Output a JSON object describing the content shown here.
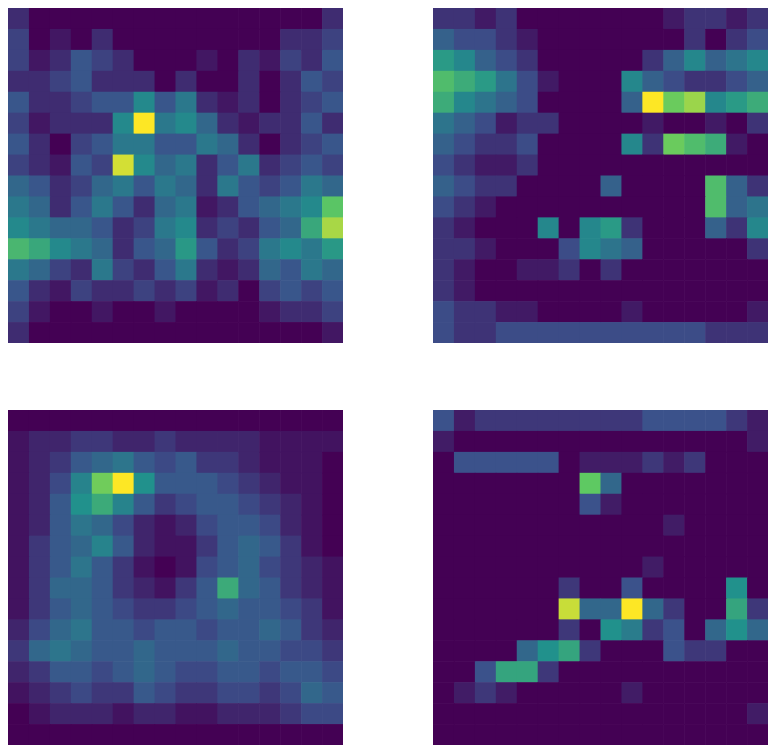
{
  "chart_data": [
    {
      "type": "heatmap",
      "color": "viridis",
      "tick_labels": false,
      "cells": [
        [
          0.1,
          0,
          0,
          0,
          0,
          0,
          0,
          0,
          0,
          0,
          0,
          0,
          0,
          0,
          0,
          0.1
        ],
        [
          0.15,
          0,
          0.05,
          0,
          0.1,
          0,
          0,
          0,
          0,
          0,
          0,
          0,
          0,
          0.1,
          0.1,
          0.15
        ],
        [
          0.15,
          0.05,
          0.1,
          0.2,
          0.15,
          0.1,
          0,
          0,
          0,
          0.05,
          0,
          0.1,
          0.05,
          0.15,
          0.1,
          0.2
        ],
        [
          0.1,
          0.1,
          0.15,
          0.2,
          0.1,
          0.1,
          0.1,
          0,
          0.1,
          0,
          0,
          0.1,
          0,
          0.1,
          0.2,
          0.15
        ],
        [
          0.2,
          0.1,
          0.1,
          0.15,
          0.2,
          0.2,
          0.35,
          0.2,
          0.3,
          0.1,
          0.05,
          0.1,
          0,
          0.1,
          0.15,
          0.2
        ],
        [
          0.15,
          0.05,
          0.1,
          0.1,
          0.1,
          0.35,
          0.75,
          0.3,
          0.35,
          0.25,
          0.1,
          0.05,
          0.1,
          0.1,
          0.2,
          0.1
        ],
        [
          0.2,
          0.1,
          0,
          0.15,
          0.2,
          0.3,
          0.3,
          0.2,
          0.2,
          0.3,
          0.25,
          0.1,
          0,
          0.1,
          0.15,
          0.2
        ],
        [
          0.15,
          0.1,
          0.05,
          0.2,
          0.15,
          0.7,
          0.35,
          0.25,
          0.3,
          0.1,
          0.2,
          0.3,
          0.1,
          0.15,
          0.2,
          0.15
        ],
        [
          0.25,
          0.2,
          0.1,
          0.15,
          0.25,
          0.3,
          0.2,
          0.3,
          0.25,
          0.1,
          0.3,
          0.2,
          0.15,
          0.2,
          0.3,
          0.25
        ],
        [
          0.3,
          0.25,
          0.1,
          0.2,
          0.3,
          0.2,
          0.1,
          0.25,
          0.3,
          0.05,
          0.1,
          0.2,
          0.25,
          0.3,
          0.35,
          0.55
        ],
        [
          0.35,
          0.3,
          0.25,
          0.25,
          0.2,
          0.1,
          0.15,
          0.3,
          0.35,
          0.1,
          0.15,
          0.1,
          0.2,
          0.25,
          0.45,
          0.65
        ],
        [
          0.5,
          0.45,
          0.35,
          0.3,
          0.25,
          0.1,
          0.2,
          0.25,
          0.4,
          0.2,
          0.1,
          0.15,
          0.3,
          0.35,
          0.3,
          0.4
        ],
        [
          0.3,
          0.25,
          0.15,
          0.1,
          0.3,
          0.15,
          0.1,
          0.2,
          0.3,
          0.1,
          0.05,
          0.1,
          0.25,
          0.2,
          0.3,
          0.25
        ],
        [
          0.2,
          0.1,
          0.05,
          0.15,
          0.1,
          0.1,
          0.15,
          0.1,
          0.15,
          0.05,
          0.1,
          0,
          0.15,
          0.2,
          0.15,
          0.2
        ],
        [
          0.15,
          0.05,
          0,
          0,
          0.05,
          0,
          0,
          0.05,
          0,
          0,
          0,
          0,
          0.05,
          0.1,
          0.1,
          0.15
        ],
        [
          0.1,
          0,
          0,
          0,
          0,
          0,
          0,
          0,
          0,
          0,
          0,
          0,
          0,
          0,
          0,
          0.05
        ]
      ]
    },
    {
      "type": "heatmap",
      "color": "viridis",
      "tick_labels": false,
      "cells": [
        [
          0.1,
          0.1,
          0.05,
          0.1,
          0,
          0,
          0,
          0,
          0,
          0,
          0,
          0.05,
          0.1,
          0.1,
          0.05,
          0.1
        ],
        [
          0.2,
          0.15,
          0.15,
          0.1,
          0.05,
          0,
          0,
          0,
          0,
          0,
          0,
          0,
          0.1,
          0,
          0.1,
          0.15
        ],
        [
          0.35,
          0.3,
          0.2,
          0.15,
          0.1,
          0,
          0,
          0,
          0,
          0,
          0.1,
          0.2,
          0.3,
          0.2,
          0.25,
          0.3
        ],
        [
          0.45,
          0.4,
          0.35,
          0.25,
          0.15,
          0.05,
          0,
          0,
          0,
          0.3,
          0.2,
          0.15,
          0.1,
          0.1,
          0.15,
          0.2
        ],
        [
          0.4,
          0.3,
          0.25,
          0.2,
          0.15,
          0,
          0,
          0,
          0,
          0.2,
          0.65,
          0.5,
          0.55,
          0.3,
          0.35,
          0.4
        ],
        [
          0.25,
          0.2,
          0.15,
          0.05,
          0.1,
          0.1,
          0,
          0,
          0,
          0,
          0.05,
          0,
          0,
          0.05,
          0,
          0.1
        ],
        [
          0.2,
          0.15,
          0.1,
          0.1,
          0.15,
          0,
          0,
          0,
          0,
          0.3,
          0.1,
          0.5,
          0.45,
          0.4,
          0.05,
          0
        ],
        [
          0.15,
          0.1,
          0.05,
          0.05,
          0.1,
          0,
          0,
          0,
          0,
          0,
          0,
          0,
          0,
          0,
          0,
          0
        ],
        [
          0.2,
          0.15,
          0.1,
          0.1,
          0,
          0,
          0,
          0,
          0.2,
          0,
          0,
          0,
          0,
          0.45,
          0.2,
          0.1
        ],
        [
          0.15,
          0.1,
          0.05,
          0,
          0,
          0,
          0,
          0,
          0,
          0,
          0,
          0,
          0,
          0.45,
          0.2,
          0.25
        ],
        [
          0.1,
          0.05,
          0,
          0,
          0,
          0.3,
          0,
          0.3,
          0.35,
          0.1,
          0,
          0,
          0,
          0.2,
          0.1,
          0.3
        ],
        [
          0.1,
          0.1,
          0.05,
          0,
          0,
          0,
          0.15,
          0.3,
          0.25,
          0.2,
          0,
          0,
          0,
          0,
          0,
          0.1
        ],
        [
          0.1,
          0.05,
          0,
          0,
          0.05,
          0.05,
          0.1,
          0,
          0.1,
          0,
          0,
          0,
          0,
          0,
          0,
          0
        ],
        [
          0.1,
          0.05,
          0,
          0,
          0,
          0,
          0,
          0,
          0,
          0,
          0,
          0,
          0,
          0,
          0,
          0
        ],
        [
          0.15,
          0.1,
          0.1,
          0.05,
          0.05,
          0,
          0,
          0,
          0,
          0.05,
          0,
          0,
          0,
          0,
          0,
          0.05
        ],
        [
          0.15,
          0.1,
          0.1,
          0.15,
          0.15,
          0.15,
          0.15,
          0.15,
          0.15,
          0.15,
          0.15,
          0.15,
          0.15,
          0.1,
          0.1,
          0.1
        ]
      ]
    },
    {
      "type": "heatmap",
      "color": "viridis",
      "tick_labels": false,
      "cells": [
        [
          0.05,
          0.05,
          0.05,
          0.05,
          0.05,
          0.05,
          0.05,
          0.05,
          0.05,
          0.05,
          0.05,
          0.05,
          0.05,
          0.05,
          0.05,
          0.05
        ],
        [
          0.1,
          0.15,
          0.15,
          0.2,
          0.2,
          0.15,
          0.15,
          0.2,
          0.15,
          0.15,
          0.15,
          0.15,
          0.1,
          0.1,
          0.1,
          0.1
        ],
        [
          0.1,
          0.15,
          0.2,
          0.3,
          0.35,
          0.4,
          0.3,
          0.25,
          0.3,
          0.2,
          0.2,
          0.15,
          0.1,
          0.1,
          0.1,
          0.05
        ],
        [
          0.1,
          0.15,
          0.25,
          0.45,
          0.75,
          0.95,
          0.5,
          0.3,
          0.3,
          0.3,
          0.25,
          0.2,
          0.15,
          0.1,
          0.1,
          0.05
        ],
        [
          0.1,
          0.15,
          0.3,
          0.5,
          0.6,
          0.45,
          0.3,
          0.2,
          0.25,
          0.3,
          0.3,
          0.25,
          0.2,
          0.15,
          0.1,
          0.05
        ],
        [
          0.1,
          0.15,
          0.3,
          0.4,
          0.35,
          0.25,
          0.15,
          0.1,
          0.15,
          0.25,
          0.3,
          0.3,
          0.25,
          0.15,
          0.1,
          0.05
        ],
        [
          0.1,
          0.2,
          0.3,
          0.35,
          0.45,
          0.3,
          0.15,
          0.1,
          0.1,
          0.2,
          0.3,
          0.35,
          0.3,
          0.2,
          0.1,
          0.05
        ],
        [
          0.1,
          0.2,
          0.3,
          0.4,
          0.3,
          0.2,
          0.1,
          0.05,
          0.1,
          0.25,
          0.3,
          0.35,
          0.25,
          0.2,
          0.15,
          0.1
        ],
        [
          0.1,
          0.2,
          0.35,
          0.35,
          0.3,
          0.2,
          0.15,
          0.1,
          0.2,
          0.3,
          0.6,
          0.35,
          0.3,
          0.2,
          0.15,
          0.1
        ],
        [
          0.1,
          0.2,
          0.3,
          0.35,
          0.3,
          0.25,
          0.2,
          0.2,
          0.25,
          0.3,
          0.35,
          0.3,
          0.3,
          0.25,
          0.2,
          0.1
        ],
        [
          0.15,
          0.25,
          0.35,
          0.4,
          0.3,
          0.3,
          0.25,
          0.3,
          0.3,
          0.25,
          0.3,
          0.3,
          0.35,
          0.3,
          0.2,
          0.15
        ],
        [
          0.2,
          0.35,
          0.4,
          0.35,
          0.3,
          0.3,
          0.35,
          0.3,
          0.3,
          0.3,
          0.35,
          0.3,
          0.3,
          0.25,
          0.25,
          0.2
        ],
        [
          0.15,
          0.2,
          0.3,
          0.3,
          0.25,
          0.3,
          0.35,
          0.3,
          0.25,
          0.25,
          0.3,
          0.3,
          0.25,
          0.3,
          0.3,
          0.25
        ],
        [
          0.1,
          0.15,
          0.2,
          0.25,
          0.2,
          0.2,
          0.3,
          0.25,
          0.2,
          0.2,
          0.25,
          0.25,
          0.2,
          0.25,
          0.35,
          0.3
        ],
        [
          0.05,
          0.1,
          0.15,
          0.15,
          0.15,
          0.1,
          0.15,
          0.15,
          0.1,
          0.1,
          0.15,
          0.15,
          0.15,
          0.2,
          0.25,
          0.25
        ],
        [
          0.05,
          0.05,
          0.05,
          0.05,
          0.05,
          0.05,
          0.05,
          0.05,
          0.05,
          0.05,
          0.05,
          0.05,
          0.05,
          0.05,
          0.05,
          0.05
        ]
      ]
    },
    {
      "type": "heatmap",
      "color": "viridis",
      "tick_labels": false,
      "cells": [
        [
          0.15,
          0.05,
          0.1,
          0.1,
          0.1,
          0.1,
          0.1,
          0.1,
          0.1,
          0.1,
          0.15,
          0.15,
          0.15,
          0.15,
          0.1,
          0.05
        ],
        [
          0.05,
          0,
          0,
          0,
          0,
          0,
          0,
          0,
          0,
          0,
          0,
          0,
          0,
          0,
          0,
          0.05
        ],
        [
          0,
          0.15,
          0.15,
          0.15,
          0.15,
          0.15,
          0,
          0.05,
          0.05,
          0.05,
          0.1,
          0.05,
          0.1,
          0,
          0,
          0
        ],
        [
          0,
          0,
          0,
          0,
          0,
          0,
          0,
          0.45,
          0.2,
          0,
          0,
          0,
          0,
          0,
          0,
          0
        ],
        [
          0,
          0,
          0,
          0,
          0,
          0,
          0,
          0.15,
          0.05,
          0,
          0,
          0,
          0,
          0,
          0,
          0
        ],
        [
          0,
          0,
          0,
          0,
          0,
          0,
          0,
          0,
          0,
          0,
          0,
          0.05,
          0,
          0,
          0,
          0
        ],
        [
          0,
          0,
          0,
          0,
          0,
          0,
          0,
          0,
          0,
          0,
          0,
          0,
          0,
          0,
          0,
          0
        ],
        [
          0,
          0,
          0,
          0,
          0,
          0,
          0,
          0,
          0,
          0,
          0.05,
          0,
          0,
          0,
          0,
          0
        ],
        [
          0,
          0,
          0,
          0,
          0,
          0,
          0.1,
          0,
          0,
          0.15,
          0,
          0,
          0,
          0,
          0.3,
          0
        ],
        [
          0,
          0,
          0,
          0,
          0,
          0,
          0.55,
          0.2,
          0.2,
          0.6,
          0.2,
          0.1,
          0,
          0,
          0.35,
          0.1
        ],
        [
          0,
          0,
          0,
          0,
          0,
          0,
          0.1,
          0,
          0.3,
          0.25,
          0.1,
          0.15,
          0,
          0.2,
          0.3,
          0.2
        ],
        [
          0,
          0,
          0,
          0,
          0.2,
          0.3,
          0.35,
          0.1,
          0,
          0,
          0,
          0.15,
          0.1,
          0.1,
          0,
          0
        ],
        [
          0,
          0,
          0.15,
          0.35,
          0.35,
          0.1,
          0,
          0,
          0,
          0,
          0,
          0,
          0,
          0,
          0,
          0
        ],
        [
          0,
          0.05,
          0.1,
          0.05,
          0,
          0,
          0,
          0,
          0,
          0.05,
          0,
          0,
          0,
          0,
          0,
          0
        ],
        [
          0,
          0,
          0,
          0,
          0,
          0,
          0,
          0,
          0,
          0,
          0,
          0,
          0,
          0,
          0,
          0.05
        ],
        [
          0,
          0,
          0,
          0,
          0,
          0,
          0,
          0,
          0,
          0,
          0,
          0,
          0,
          0,
          0,
          0
        ]
      ]
    }
  ]
}
